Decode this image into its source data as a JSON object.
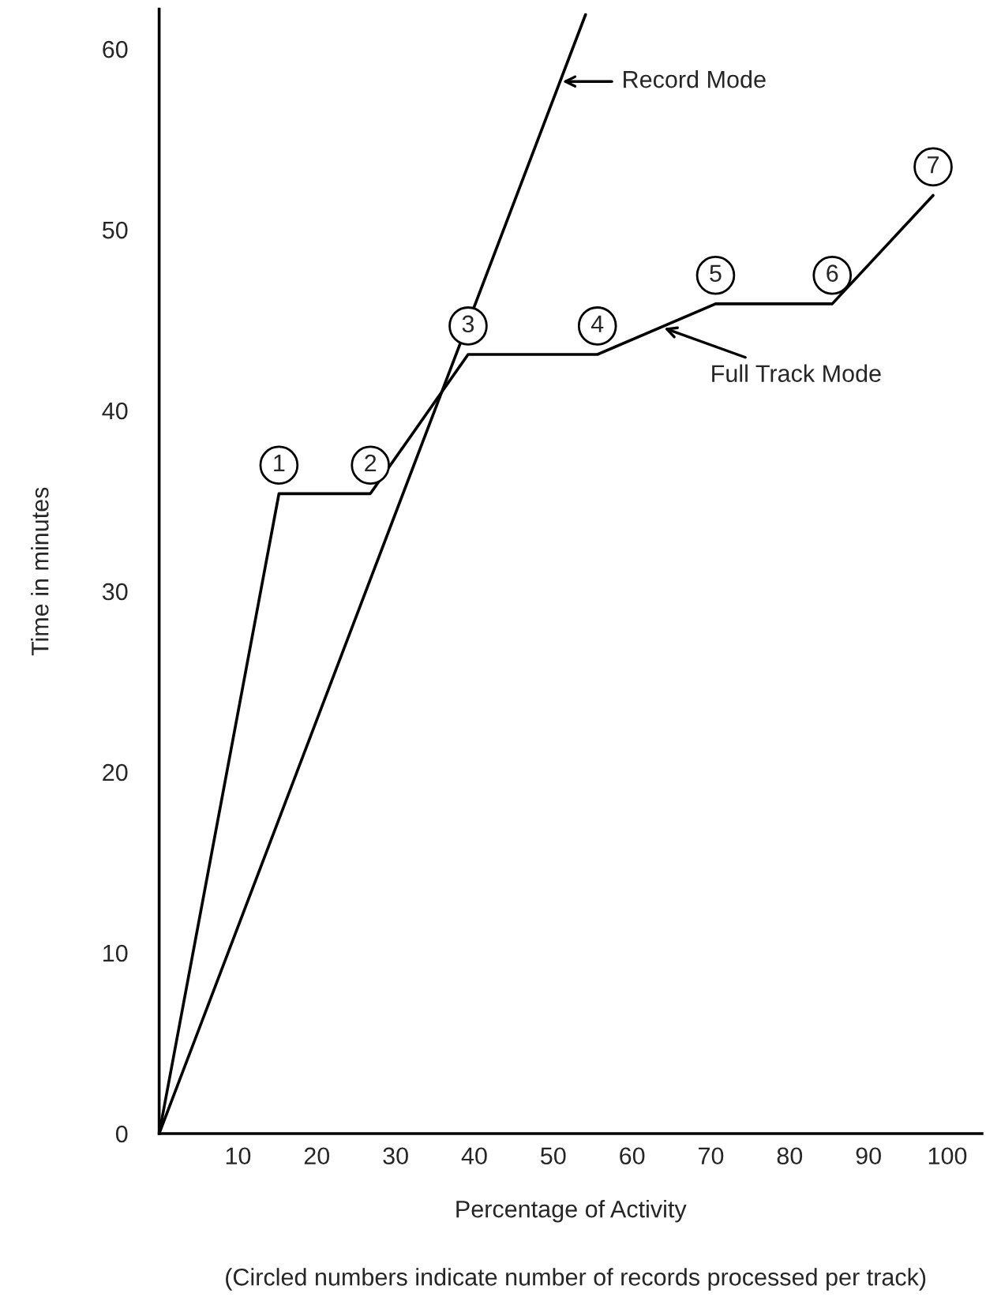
{
  "chart_data": {
    "type": "line",
    "xlabel": "Percentage of Activity",
    "ylabel": "Time in minutes",
    "xlim": [
      0,
      104.4
    ],
    "ylim": [
      0,
      62.2
    ],
    "xticks": [
      10,
      20,
      30,
      40,
      50,
      60,
      70,
      80,
      90,
      100
    ],
    "yticks": [
      0,
      10,
      20,
      30,
      40,
      50,
      60
    ],
    "grid": false,
    "legend": false,
    "marker": "none",
    "line_style": "solid",
    "series": [
      {
        "color": "#000000",
        "x": [
          0,
          54.1
        ],
        "values": [
          0,
          61.9
        ]
      },
      {
        "color": "#000000",
        "x": [
          0,
          15.2,
          26.8,
          39.2,
          55.6,
          70.6,
          85.4,
          98.2
        ],
        "values": [
          0,
          35.4,
          35.4,
          43.1,
          43.1,
          45.9,
          45.9,
          51.9
        ]
      }
    ],
    "annotations": [
      {
        "text": "1",
        "x": 15.2,
        "y": 35.4
      },
      {
        "text": "2",
        "x": 26.8,
        "y": 35.4
      },
      {
        "text": "3",
        "x": 39.2,
        "y": 43.1
      },
      {
        "text": "4",
        "x": 55.6,
        "y": 43.1
      },
      {
        "text": "5",
        "x": 70.6,
        "y": 45.9
      },
      {
        "text": "6",
        "x": 85.4,
        "y": 45.9
      },
      {
        "text": "7",
        "x": 98.2,
        "y": 51.9
      },
      {
        "text": "Record Mode",
        "x": 50.9,
        "y": 58.2
      },
      {
        "text": "Full Track Mode",
        "x": 63.8,
        "y": 44.6
      },
      "(Circled numbers indicate number of records processed per track)"
    ]
  }
}
